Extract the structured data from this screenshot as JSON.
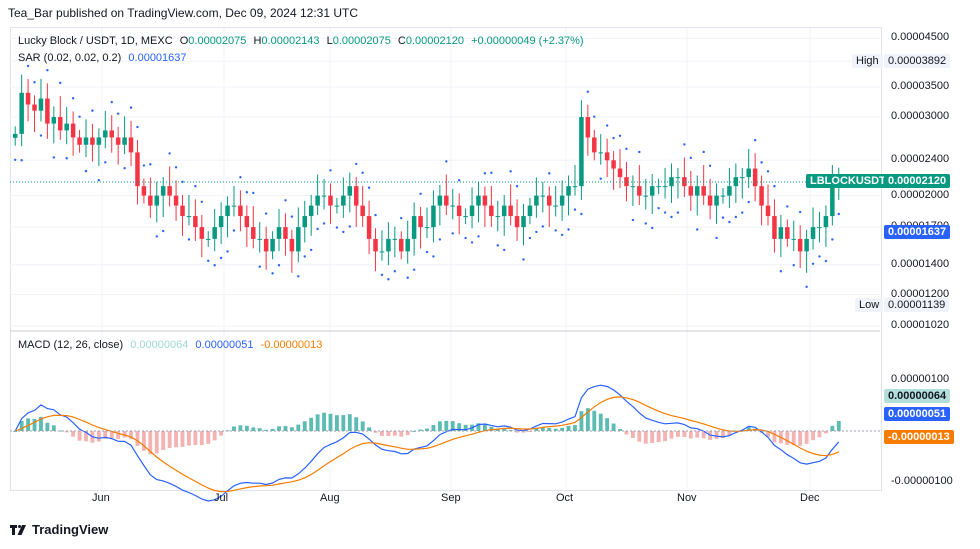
{
  "header": {
    "published": "Tea_Bar published on TradingView.com, Dec 09, 2024 12:31 UTC"
  },
  "legend": {
    "symbol": "Lucky Block / USDT, 1D, MEXC",
    "o_label": "O",
    "o_value": "0.00002075",
    "h_label": "H",
    "h_value": "0.00002143",
    "l_label": "L",
    "l_value": "0.00002075",
    "c_label": "C",
    "c_value": "0.00002120",
    "change": "+0.00000049 (+2.37%)",
    "sar_label": "SAR (0.02, 0.02, 0.2)",
    "sar_value": "0.00001637",
    "macd_label": "MACD (12, 26, close)",
    "macd_hist": "0.00000064",
    "macd_line": "0.00000051",
    "macd_signal": "-0.00000013"
  },
  "tags": {
    "high_label": "High",
    "high_value": "0.00003892",
    "low_label": "Low",
    "low_value": "0.00001139",
    "symbol_tag": "LBLOCKUSDT",
    "last_price": "0.00002120",
    "sar_tag": "0.00001637",
    "macd_hist_tag": "0.00000064",
    "macd_line_tag": "0.00000051",
    "macd_signal_tag": "-0.00000013"
  },
  "colors": {
    "up": "#089981",
    "down": "#f23645",
    "sar": "#2962ff",
    "macd": "#2962ff",
    "signal": "#f57c00",
    "hist_up": "#26a69a",
    "hist_down": "#ef9a9a"
  },
  "footer": {
    "brand": "TradingView"
  },
  "chart_data": [
    {
      "type": "candlestick",
      "title": "Lucky Block / USDT, 1D, MEXC",
      "log_scale": true,
      "price_axis_ticks": [
        "0.00004500",
        "0.00004000",
        "0.00003500",
        "0.00003000",
        "0.00002400",
        "0.00002000",
        "0.00001700",
        "0.00001400",
        "0.00001200",
        "0.00001020"
      ],
      "time_axis_ticks": [
        "Jun",
        "Jul",
        "Aug",
        "Sep",
        "Oct",
        "Nov",
        "Dec"
      ],
      "grid": true,
      "series_close": [
        2.75e-05,
        3.4e-05,
        3.2e-05,
        3.1e-05,
        3.3e-05,
        2.9e-05,
        3e-05,
        2.8e-05,
        2.9e-05,
        2.7e-05,
        2.6e-05,
        2.7e-05,
        2.6e-05,
        2.7e-05,
        2.8e-05,
        2.7e-05,
        2.6e-05,
        2.7e-05,
        2.5e-05,
        2.1e-05,
        2e-05,
        1.9e-05,
        2e-05,
        2.1e-05,
        2e-05,
        1.9e-05,
        1.8e-05,
        1.8e-05,
        1.7e-05,
        1.6e-05,
        1.6e-05,
        1.7e-05,
        1.8e-05,
        1.9e-05,
        1.9e-05,
        1.8e-05,
        1.7e-05,
        1.6e-05,
        1.6e-05,
        1.5e-05,
        1.6e-05,
        1.7e-05,
        1.6e-05,
        1.5e-05,
        1.7e-05,
        1.8e-05,
        1.9e-05,
        2e-05,
        2e-05,
        1.9e-05,
        1.9e-05,
        2e-05,
        2.1e-05,
        1.9e-05,
        1.8e-05,
        1.6e-05,
        1.5e-05,
        1.5e-05,
        1.6e-05,
        1.6e-05,
        1.5e-05,
        1.6e-05,
        1.8e-05,
        1.7e-05,
        1.7e-05,
        1.9e-05,
        2e-05,
        1.9e-05,
        1.9e-05,
        1.8e-05,
        1.8e-05,
        1.9e-05,
        2e-05,
        1.9e-05,
        1.8e-05,
        1.8e-05,
        1.9e-05,
        1.8e-05,
        1.7e-05,
        1.8e-05,
        1.9e-05,
        2e-05,
        2e-05,
        1.9e-05,
        1.9e-05,
        2e-05,
        2.1e-05,
        2.1e-05,
        3e-05,
        2.7e-05,
        2.5e-05,
        2.5e-05,
        2.4e-05,
        2.3e-05,
        2.2e-05,
        2.1e-05,
        2.1e-05,
        2e-05,
        2e-05,
        2.1e-05,
        2.1e-05,
        2.1e-05,
        2.2e-05,
        2.2e-05,
        2.1e-05,
        2e-05,
        2.1e-05,
        2e-05,
        1.9e-05,
        2e-05,
        2e-05,
        2.1e-05,
        2.2e-05,
        2.2e-05,
        2.3e-05,
        2.1e-05,
        1.9e-05,
        1.8e-05,
        1.6e-05,
        1.7e-05,
        1.6e-05,
        1.6e-05,
        1.5e-05,
        1.6e-05,
        1.7e-05,
        1.7e-05,
        1.8e-05,
        2.1e-05,
        2.12e-05
      ],
      "sar_dots": "plotted per bar below/above candles",
      "last_close": 2.12e-05,
      "high": 3.892e-05,
      "low": 1.139e-05
    },
    {
      "type": "macd",
      "title": "MACD (12, 26, close)",
      "axis_ticks": [
        "0.00000100",
        "-0.00000100"
      ],
      "series": [
        {
          "name": "Histogram",
          "last": 6.4e-07
        },
        {
          "name": "MACD",
          "last": 5.1e-07
        },
        {
          "name": "Signal",
          "last": -1.3e-07
        }
      ]
    }
  ]
}
